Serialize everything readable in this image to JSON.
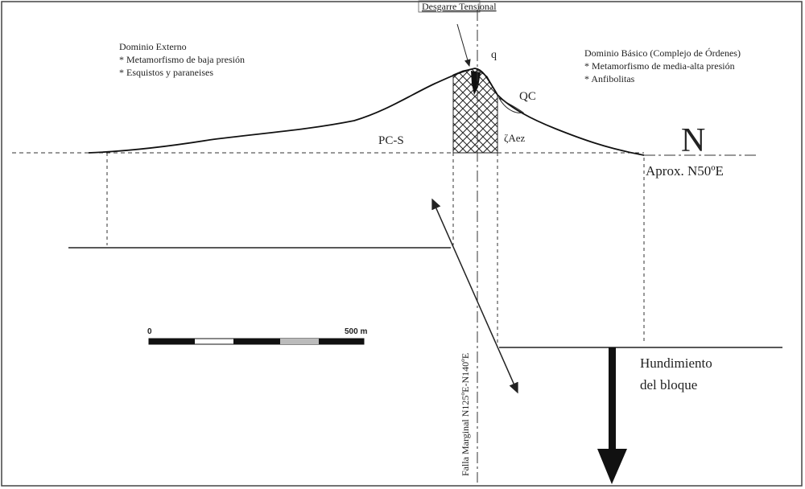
{
  "labels": {
    "tension_tear": "Desgarre Tensional",
    "q": "q",
    "external_domain": {
      "title": "Dominio Externo",
      "items": [
        "* Metamorfismo de baja presión",
        "* Esquistos y paraneises"
      ]
    },
    "basic_domain": {
      "title": "Dominio Básico (Complejo de Órdenes)",
      "items": [
        "* Metamorfismo de media-alta presión",
        "* Anfibolitas"
      ]
    },
    "qc": "QC",
    "pcs": "PC-S",
    "zaez": "ζAez",
    "north": "N",
    "direction": "Aprox. N50ºE",
    "scale_start": "0",
    "scale_end": "500 m",
    "fault": "Falla Marginal N125ºE-N140ºE",
    "subsidence": [
      "Hundimiento",
      "del bloque"
    ]
  }
}
